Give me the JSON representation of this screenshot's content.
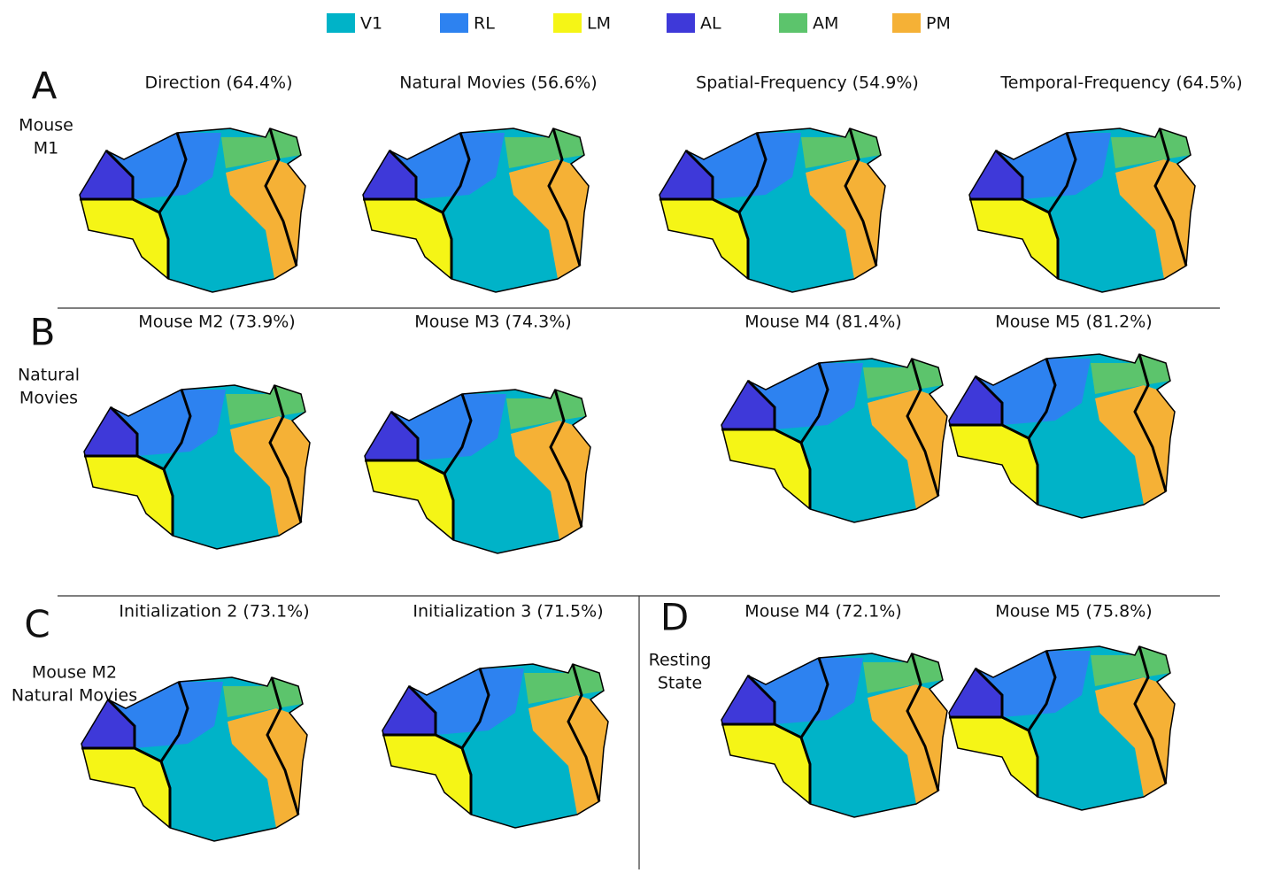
{
  "legend": [
    {
      "label": "V1",
      "color": "#00b3c8"
    },
    {
      "label": "RL",
      "color": "#2d82f0"
    },
    {
      "label": "LM",
      "color": "#f5f516"
    },
    {
      "label": "AL",
      "color": "#3e39d9"
    },
    {
      "label": "AM",
      "color": "#5cc46c"
    },
    {
      "label": "PM",
      "color": "#f5b136"
    }
  ],
  "panels": [
    {
      "letter": "A",
      "label_lines": [
        "Mouse",
        "M1"
      ],
      "titles": [
        "Direction (64.4%)",
        "Natural Movies (56.6%)",
        "Spatial-Frequency (54.9%)",
        "Temporal-Frequency (64.5%)"
      ]
    },
    {
      "letter": "B",
      "label_lines": [
        "Natural",
        "Movies"
      ],
      "titles": [
        "Mouse M2 (73.9%)",
        "Mouse M3 (74.3%)",
        "Mouse M4 (81.4%)",
        "Mouse M5 (81.2%)"
      ]
    },
    {
      "letter": "C",
      "label_lines": [
        "Mouse M2",
        "Natural Movies"
      ],
      "titles": [
        "Initialization 2 (73.1%)",
        "Initialization 3 (71.5%)"
      ]
    },
    {
      "letter": "D",
      "label_lines": [
        "Resting",
        "State"
      ],
      "titles": [
        "Mouse M4 (72.1%)",
        "Mouse M5 (75.8%)"
      ]
    }
  ]
}
